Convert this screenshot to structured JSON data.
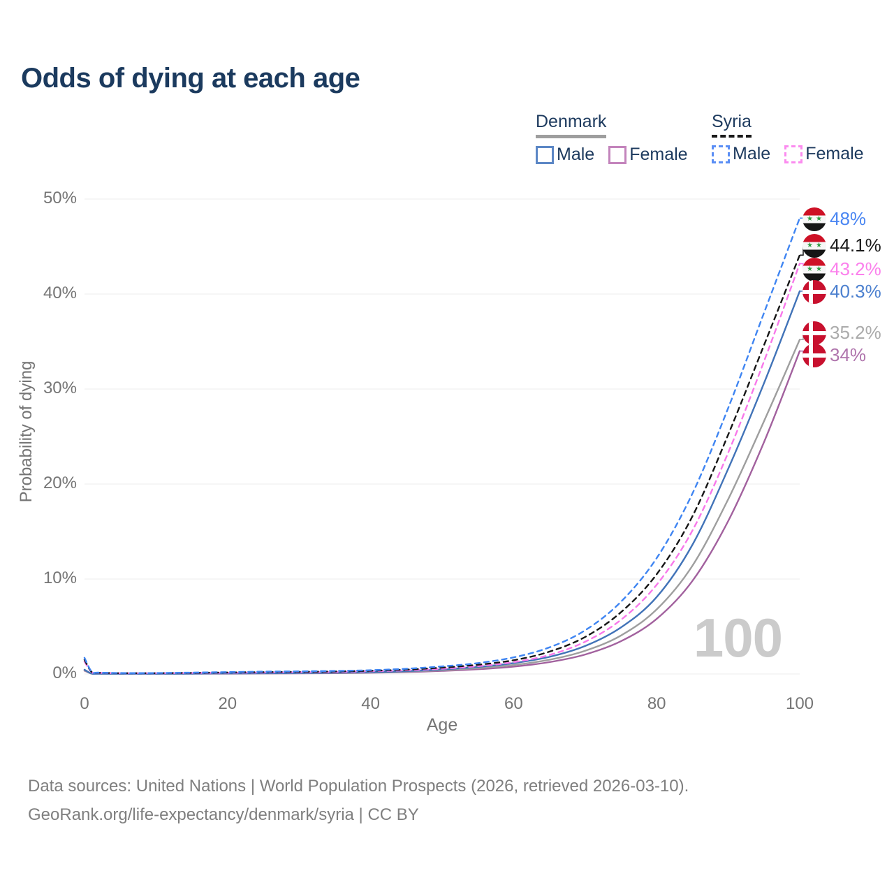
{
  "title": "Odds of dying at each age",
  "legend": {
    "groups": [
      {
        "id": "denmark",
        "title": "Denmark",
        "style": "solid",
        "underline_color": "#9e9e9e",
        "items": [
          {
            "label": "Male",
            "color": "#5c87c5",
            "dash": false
          },
          {
            "label": "Female",
            "color": "#c384bc",
            "dash": false
          }
        ]
      },
      {
        "id": "syria",
        "title": "Syria",
        "style": "dashed",
        "underline_color": "#1a1a1a",
        "items": [
          {
            "label": "Male",
            "color": "#5a8ef5",
            "dash": true
          },
          {
            "label": "Female",
            "color": "#fb8bef",
            "dash": true
          }
        ]
      }
    ]
  },
  "chart_data": {
    "type": "line",
    "title": "Odds of dying at each age",
    "xlabel": "Age",
    "ylabel": "Probability of dying",
    "xlim": [
      0,
      100
    ],
    "ylim": [
      0,
      50
    ],
    "grid": "horizontal",
    "legend_position": "top-right",
    "watermark": "100",
    "x_ticks": [
      0,
      20,
      40,
      60,
      80,
      100
    ],
    "y_ticks": [
      {
        "value": 50,
        "label": "50%"
      },
      {
        "value": 40,
        "label": "40%"
      },
      {
        "value": 30,
        "label": "30%"
      },
      {
        "value": 20,
        "label": "20%"
      },
      {
        "value": 10,
        "label": "10%"
      },
      {
        "value": 0,
        "label": "0%"
      }
    ],
    "x": [
      0,
      1,
      2,
      5,
      10,
      15,
      20,
      25,
      30,
      35,
      40,
      45,
      50,
      55,
      60,
      65,
      70,
      75,
      80,
      85,
      90,
      95,
      100
    ],
    "series": [
      {
        "id": "syria-male",
        "name": "Syria Male",
        "country": "Syria",
        "sex": "Male",
        "color": "#3f85f2",
        "label_color": "#4a86f2",
        "dash": true,
        "flag": "syria",
        "end_label": "48%",
        "label_pos": 47.9,
        "values": [
          1.7,
          0.25,
          0.15,
          0.1,
          0.1,
          0.15,
          0.2,
          0.25,
          0.28,
          0.32,
          0.4,
          0.55,
          0.8,
          1.15,
          1.75,
          2.8,
          4.6,
          7.6,
          12.2,
          19,
          28,
          38,
          48
        ]
      },
      {
        "id": "syria-both",
        "name": "Syria Both sexes",
        "country": "Syria",
        "sex": "Both",
        "color": "#161616",
        "label_color": "#1a1a1a",
        "dash": true,
        "flag": "syria",
        "end_label": "44.1%",
        "label_pos": 45.1,
        "values": [
          1.5,
          0.22,
          0.13,
          0.09,
          0.09,
          0.12,
          0.16,
          0.2,
          0.23,
          0.27,
          0.34,
          0.46,
          0.67,
          0.97,
          1.45,
          2.35,
          3.9,
          6.5,
          10.5,
          16.6,
          25.2,
          34.6,
          44.1
        ]
      },
      {
        "id": "syria-female",
        "name": "Syria Female",
        "country": "Syria",
        "sex": "Female",
        "color": "#f878ea",
        "label_color": "#fb80ec",
        "dash": true,
        "flag": "syria",
        "end_label": "43.2%",
        "label_pos": 42.6,
        "values": [
          1.3,
          0.2,
          0.12,
          0.08,
          0.08,
          0.1,
          0.13,
          0.15,
          0.18,
          0.22,
          0.29,
          0.38,
          0.55,
          0.82,
          1.25,
          2.0,
          3.4,
          5.7,
          9.4,
          15.1,
          23.3,
          32.9,
          43.2
        ]
      },
      {
        "id": "denmark-male",
        "name": "Denmark Male",
        "country": "Denmark",
        "sex": "Male",
        "color": "#4173b8",
        "label_color": "#4c80cf",
        "dash": false,
        "flag": "denmark",
        "end_label": "40.3%",
        "label_pos": 40.2,
        "values": [
          0.45,
          0.05,
          0.03,
          0.02,
          0.025,
          0.045,
          0.07,
          0.08,
          0.1,
          0.14,
          0.2,
          0.3,
          0.48,
          0.75,
          1.15,
          1.8,
          2.95,
          4.9,
          8.1,
          13.6,
          21.6,
          30.6,
          40.3
        ]
      },
      {
        "id": "denmark-both",
        "name": "Denmark Both sexes",
        "country": "Denmark",
        "sex": "Both",
        "color": "#9e9e9e",
        "label_color": "#ababab",
        "dash": false,
        "flag": "denmark",
        "end_label": "35.2%",
        "label_pos": 35.9,
        "values": [
          0.4,
          0.04,
          0.025,
          0.018,
          0.02,
          0.035,
          0.055,
          0.065,
          0.085,
          0.115,
          0.165,
          0.25,
          0.4,
          0.62,
          0.95,
          1.5,
          2.45,
          4.05,
          6.8,
          11.4,
          18.4,
          26.6,
          35.2
        ]
      },
      {
        "id": "denmark-female",
        "name": "Denmark Female",
        "country": "Denmark",
        "sex": "Female",
        "color": "#a2619e",
        "label_color": "#af74ac",
        "dash": false,
        "flag": "denmark",
        "end_label": "34%",
        "label_pos": 33.5,
        "values": [
          0.35,
          0.04,
          0.02,
          0.015,
          0.018,
          0.03,
          0.04,
          0.05,
          0.07,
          0.09,
          0.13,
          0.2,
          0.32,
          0.5,
          0.78,
          1.25,
          2.05,
          3.45,
          5.8,
          9.8,
          16.1,
          24.4,
          34.0
        ]
      }
    ]
  },
  "footer": {
    "line1": "Data sources: United Nations | World Population Prospects (2026, retrieved 2026-03-10).",
    "line2": "GeoRank.org/life-expectancy/denmark/syria | CC BY"
  }
}
